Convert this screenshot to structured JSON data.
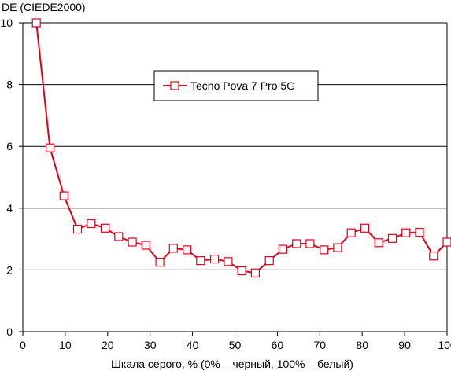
{
  "chart_data": {
    "type": "line",
    "title": "",
    "ylabel": "DE (CIEDE2000)",
    "xlabel": "Шкала серого, % (0% – черный, 100% – белый)",
    "xlim": [
      0,
      100
    ],
    "ylim": [
      0,
      10
    ],
    "xticks": [
      "0",
      "10",
      "20",
      "30",
      "40",
      "50",
      "60",
      "70",
      "80",
      "90",
      "100"
    ],
    "yticks": [
      "0",
      "2",
      "4",
      "6",
      "8",
      "10"
    ],
    "grid": "horizontal",
    "legend_position": "top-center",
    "series": [
      {
        "name": "Tecno Pova 7 Pro 5G",
        "color": "#e0001a",
        "marker": "square-open",
        "x": [
          3.2,
          6.4,
          9.7,
          12.9,
          16.1,
          19.4,
          22.6,
          25.8,
          29.0,
          32.3,
          35.5,
          38.7,
          41.9,
          45.2,
          48.4,
          51.6,
          54.8,
          58.1,
          61.3,
          64.5,
          67.7,
          71.0,
          74.2,
          77.4,
          80.6,
          83.9,
          87.1,
          90.3,
          93.5,
          96.8,
          100.0
        ],
        "y": [
          10.0,
          5.95,
          4.4,
          3.32,
          3.5,
          3.35,
          3.08,
          2.9,
          2.8,
          2.25,
          2.7,
          2.65,
          2.3,
          2.35,
          2.27,
          1.97,
          1.9,
          2.3,
          2.67,
          2.85,
          2.85,
          2.65,
          2.72,
          3.2,
          3.35,
          2.88,
          3.02,
          3.2,
          3.22,
          2.45,
          2.9
        ]
      }
    ]
  }
}
